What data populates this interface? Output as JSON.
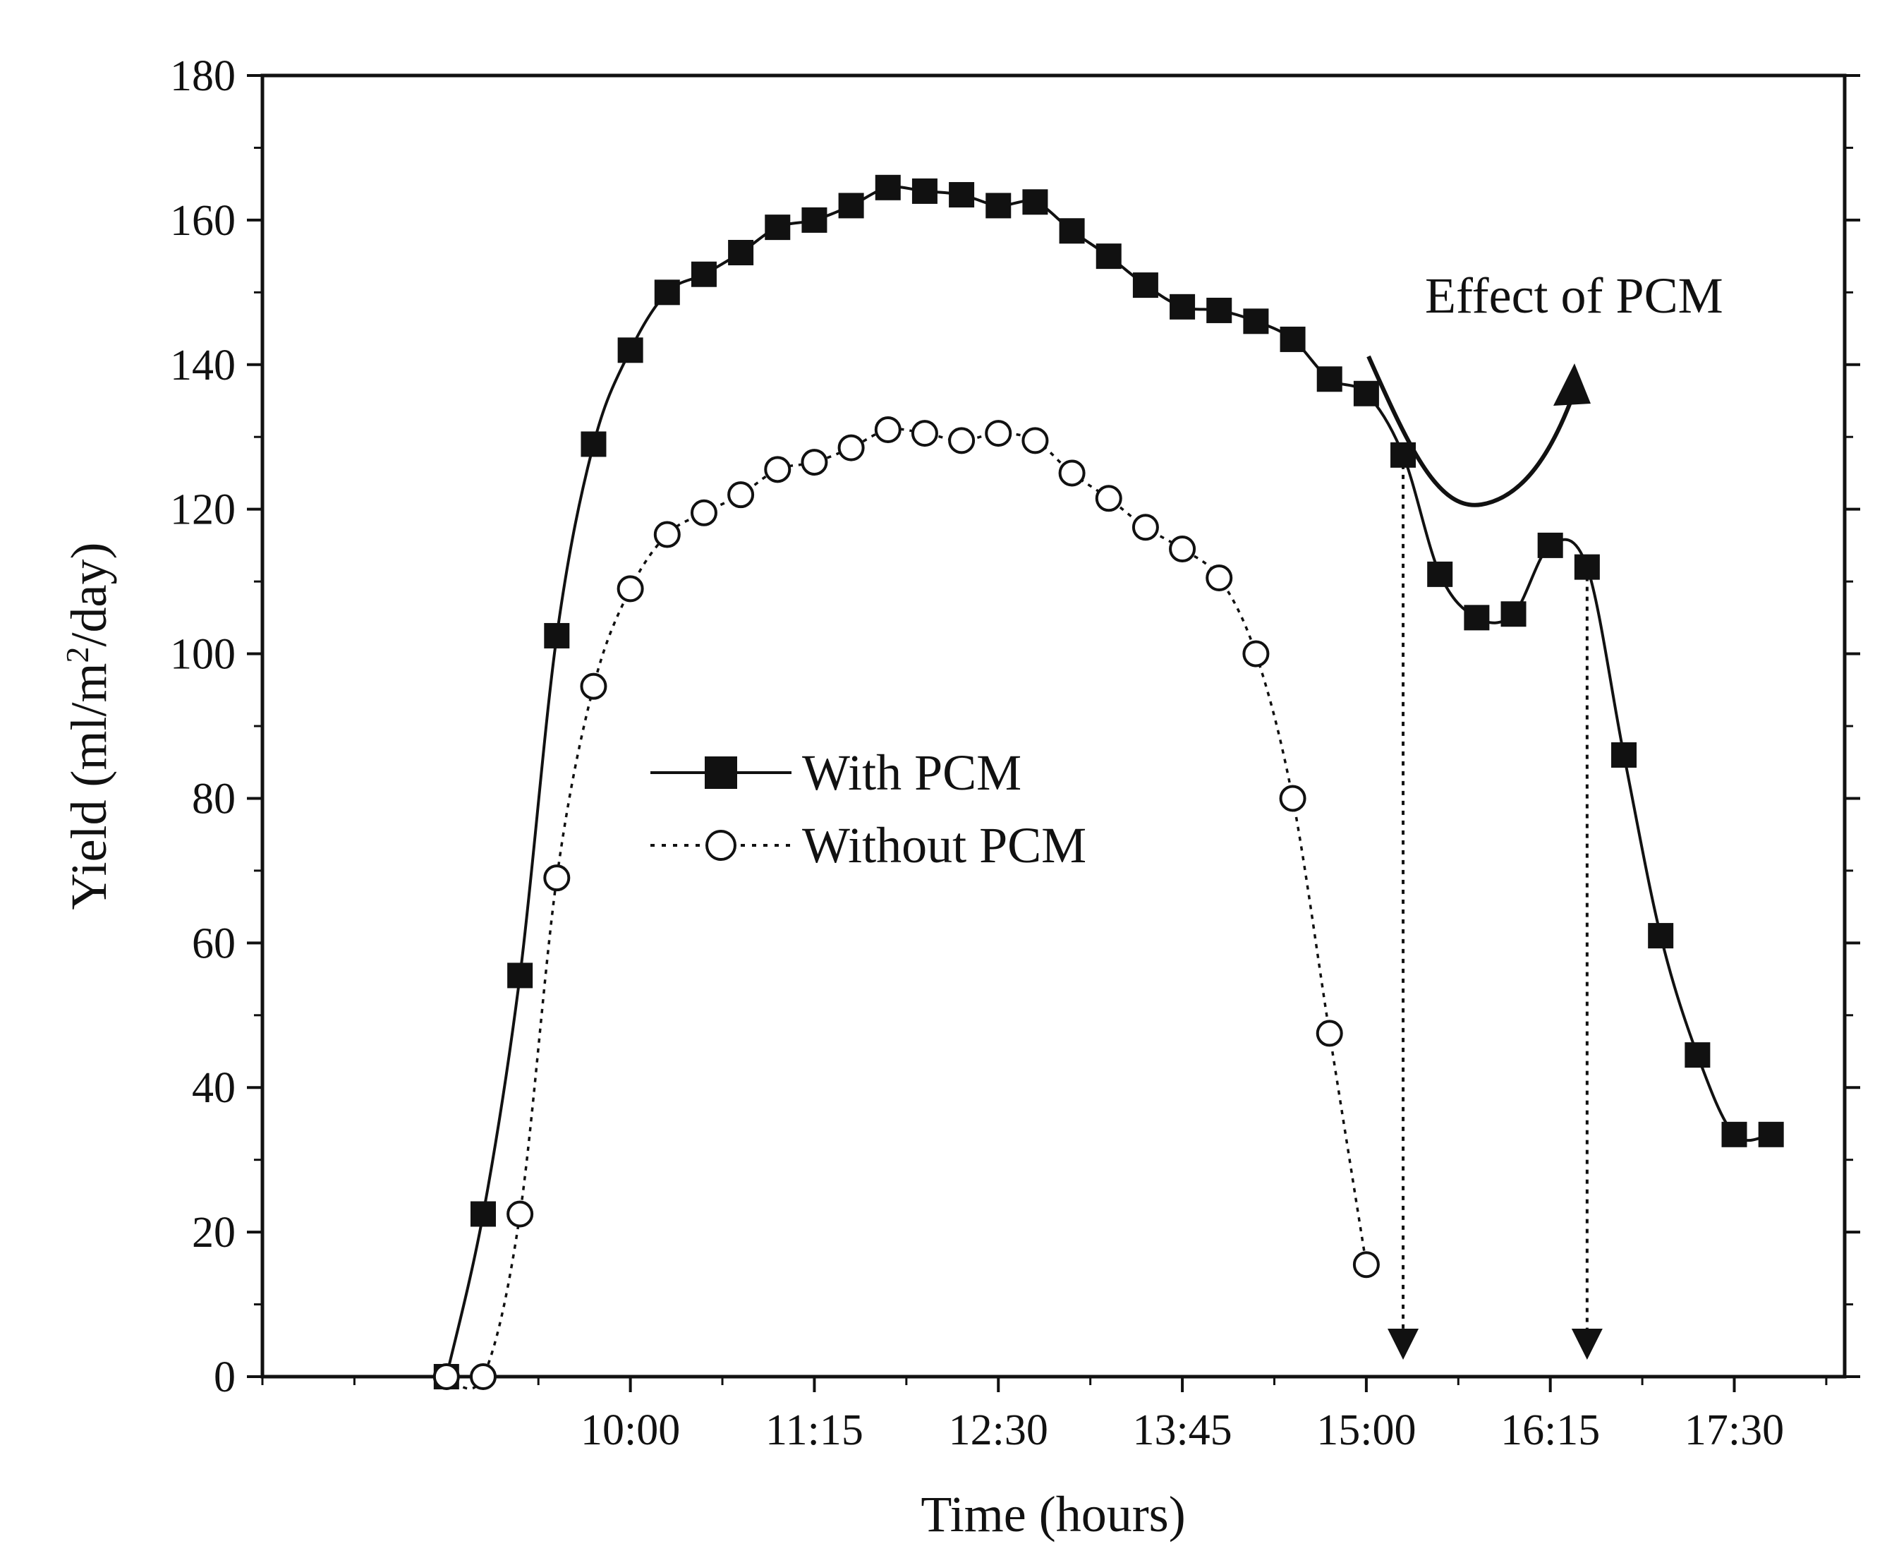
{
  "chart_data": {
    "type": "line",
    "title": "",
    "xlabel": "Time (hours)",
    "ylabel": "Yield (ml/m2/day)",
    "ylabel_parts": {
      "main": "Yield (ml/m",
      "sup": "2",
      "tail": "/day)"
    },
    "xlim": [
      7.5,
      18.25
    ],
    "ylim": [
      0,
      180
    ],
    "ytick_step": 20,
    "yticks": [
      0,
      20,
      40,
      60,
      80,
      100,
      120,
      140,
      160,
      180
    ],
    "xticks": [
      {
        "value": 10.0,
        "label": "10:00"
      },
      {
        "value": 11.25,
        "label": "11:15"
      },
      {
        "value": 12.5,
        "label": "12:30"
      },
      {
        "value": 13.75,
        "label": "13:45"
      },
      {
        "value": 15.0,
        "label": "15:00"
      },
      {
        "value": 16.25,
        "label": "16:15"
      },
      {
        "value": 17.5,
        "label": "17:30"
      }
    ],
    "x_minor_ticks": [
      7.5,
      8.125,
      8.75,
      9.375,
      10.625,
      11.875,
      13.125,
      14.375,
      15.625,
      16.875,
      18.125
    ],
    "series": [
      {
        "name": "With PCM",
        "marker": "filled-square",
        "line": "solid",
        "color": "#111111",
        "points": [
          [
            8.75,
            0
          ],
          [
            9.0,
            22.5
          ],
          [
            9.25,
            55.5
          ],
          [
            9.5,
            102.5
          ],
          [
            9.75,
            129
          ],
          [
            10.0,
            142
          ],
          [
            10.25,
            150
          ],
          [
            10.5,
            152.5
          ],
          [
            10.75,
            155.5
          ],
          [
            11.0,
            159
          ],
          [
            11.25,
            160
          ],
          [
            11.5,
            162
          ],
          [
            11.75,
            164.5
          ],
          [
            12.0,
            164
          ],
          [
            12.25,
            163.5
          ],
          [
            12.5,
            162
          ],
          [
            12.75,
            162.5
          ],
          [
            13.0,
            158.5
          ],
          [
            13.25,
            155
          ],
          [
            13.5,
            151
          ],
          [
            13.75,
            148
          ],
          [
            14.0,
            147.5
          ],
          [
            14.25,
            146
          ],
          [
            14.5,
            143.5
          ],
          [
            14.75,
            138
          ],
          [
            15.0,
            136
          ],
          [
            15.25,
            127.5
          ],
          [
            15.5,
            111
          ],
          [
            15.75,
            105
          ],
          [
            16.0,
            105.5
          ],
          [
            16.25,
            115
          ],
          [
            16.5,
            112
          ],
          [
            16.75,
            86
          ],
          [
            17.0,
            61
          ],
          [
            17.25,
            44.5
          ],
          [
            17.5,
            33.5
          ],
          [
            17.75,
            33.5
          ]
        ]
      },
      {
        "name": "Without PCM",
        "marker": "open-circle",
        "line": "dotted",
        "color": "#111111",
        "points": [
          [
            8.75,
            0
          ],
          [
            9.0,
            0
          ],
          [
            9.25,
            22.5
          ],
          [
            9.5,
            69
          ],
          [
            9.75,
            95.5
          ],
          [
            10.0,
            109
          ],
          [
            10.25,
            116.5
          ],
          [
            10.5,
            119.5
          ],
          [
            10.75,
            122
          ],
          [
            11.0,
            125.5
          ],
          [
            11.25,
            126.5
          ],
          [
            11.5,
            128.5
          ],
          [
            11.75,
            131
          ],
          [
            12.0,
            130.5
          ],
          [
            12.25,
            129.5
          ],
          [
            12.5,
            130.5
          ],
          [
            12.75,
            129.5
          ],
          [
            13.0,
            125
          ],
          [
            13.25,
            121.5
          ],
          [
            13.5,
            117.5
          ],
          [
            13.75,
            114.5
          ],
          [
            14.0,
            110.5
          ],
          [
            14.25,
            100
          ],
          [
            14.5,
            80
          ],
          [
            14.75,
            47.5
          ],
          [
            15.0,
            15.5
          ]
        ]
      }
    ],
    "annotations": [
      {
        "text": "Effect of PCM",
        "type": "curved-arrow"
      },
      {
        "type": "dropline-arrow",
        "x": 15.25,
        "from_y": 127.5
      },
      {
        "type": "dropline-arrow",
        "x": 16.5,
        "from_y": 112
      }
    ],
    "legend": {
      "position": "center-left",
      "entries": [
        "With PCM",
        "Without PCM"
      ]
    },
    "grid": false
  }
}
